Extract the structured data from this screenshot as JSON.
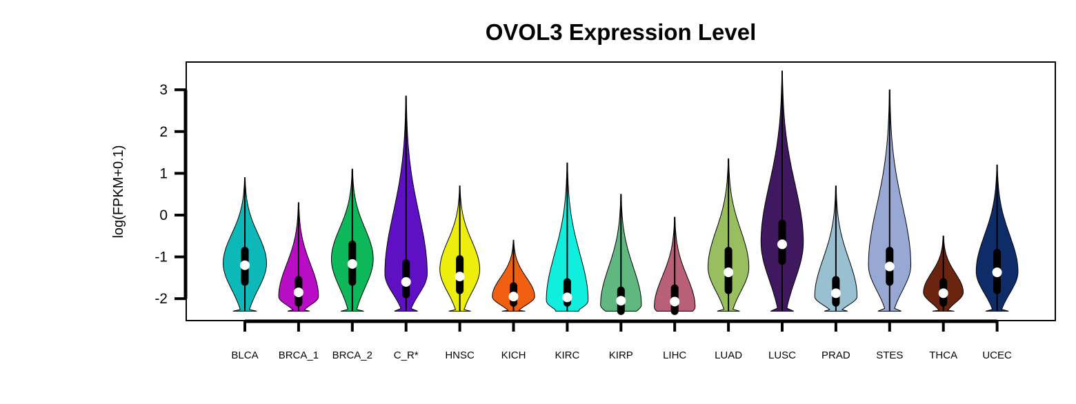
{
  "chart_data": {
    "type": "violin",
    "title": "OVOL3 Expression Level",
    "xlabel": "",
    "ylabel": "log(FPKM+0.1)",
    "ylim": [
      -2.5,
      3.3
    ],
    "yticks": [
      3,
      2,
      1,
      0,
      -1,
      -2
    ],
    "grid": false,
    "categories": [
      "BLCA",
      "BRCA_1",
      "BRCA_2",
      "C_R*",
      "HNSC",
      "KICH",
      "KIRC",
      "KIRP",
      "LIHC",
      "LUAD",
      "LUSC",
      "PRAD",
      "STES",
      "THCA",
      "UCEC"
    ],
    "series": [
      {
        "category": "BLCA",
        "color": "#0DB8B8",
        "min": -2.3,
        "max": 0.9,
        "q1": -1.6,
        "median": -1.2,
        "q3": -0.85,
        "mode": -1.15,
        "halfwidth": 0.85
      },
      {
        "category": "BRCA_1",
        "color": "#B80DC4",
        "min": -2.3,
        "max": 0.3,
        "q1": -2.1,
        "median": -1.85,
        "q3": -1.55,
        "mode": -1.95,
        "halfwidth": 0.78
      },
      {
        "category": "BRCA_2",
        "color": "#0DB85A",
        "min": -2.3,
        "max": 1.1,
        "q1": -1.6,
        "median": -1.17,
        "q3": -0.7,
        "mode": -1.05,
        "halfwidth": 0.82
      },
      {
        "category": "C_R*",
        "color": "#6010C4",
        "min": -2.3,
        "max": 2.85,
        "q1": -1.9,
        "median": -1.6,
        "q3": -1.15,
        "mode": -1.4,
        "halfwidth": 0.83
      },
      {
        "category": "HNSC",
        "color": "#EEEE0D",
        "min": -2.3,
        "max": 0.7,
        "q1": -1.8,
        "median": -1.47,
        "q3": -1.05,
        "mode": -1.3,
        "halfwidth": 0.78
      },
      {
        "category": "KICH",
        "color": "#F06010",
        "min": -2.3,
        "max": -0.6,
        "q1": -2.1,
        "median": -1.95,
        "q3": -1.7,
        "mode": -1.95,
        "halfwidth": 0.83
      },
      {
        "category": "KIRC",
        "color": "#10EEDD",
        "min": -2.3,
        "max": 1.25,
        "q1": -2.1,
        "median": -1.97,
        "q3": -1.6,
        "mode": -2.05,
        "halfwidth": 0.82
      },
      {
        "category": "KIRP",
        "color": "#60B880",
        "min": -2.3,
        "max": 0.5,
        "q1": -2.3,
        "median": -2.05,
        "q3": -1.8,
        "mode": -2.15,
        "halfwidth": 0.8
      },
      {
        "category": "LIHC",
        "color": "#B86078",
        "min": -2.3,
        "max": -0.05,
        "q1": -2.3,
        "median": -2.07,
        "q3": -1.75,
        "mode": -2.2,
        "halfwidth": 0.8
      },
      {
        "category": "LUAD",
        "color": "#98BE60",
        "min": -2.3,
        "max": 1.35,
        "q1": -1.8,
        "median": -1.37,
        "q3": -0.85,
        "mode": -1.25,
        "halfwidth": 0.8
      },
      {
        "category": "LUSC",
        "color": "#401860",
        "min": -2.3,
        "max": 3.45,
        "q1": -1.1,
        "median": -0.7,
        "q3": -0.2,
        "mode": -0.65,
        "halfwidth": 0.83
      },
      {
        "category": "PRAD",
        "color": "#98C0D0",
        "min": -2.3,
        "max": 0.7,
        "q1": -2.1,
        "median": -1.87,
        "q3": -1.55,
        "mode": -1.95,
        "halfwidth": 0.83
      },
      {
        "category": "STES",
        "color": "#98A8D4",
        "min": -2.3,
        "max": 3.0,
        "q1": -1.6,
        "median": -1.23,
        "q3": -0.85,
        "mode": -1.2,
        "halfwidth": 0.83
      },
      {
        "category": "THCA",
        "color": "#6A2410",
        "min": -2.3,
        "max": -0.5,
        "q1": -2.1,
        "median": -1.87,
        "q3": -1.6,
        "mode": -1.85,
        "halfwidth": 0.78
      },
      {
        "category": "UCEC",
        "color": "#0D2C68",
        "min": -2.3,
        "max": 1.2,
        "q1": -1.8,
        "median": -1.37,
        "q3": -0.9,
        "mode": -1.35,
        "halfwidth": 0.82
      }
    ]
  }
}
